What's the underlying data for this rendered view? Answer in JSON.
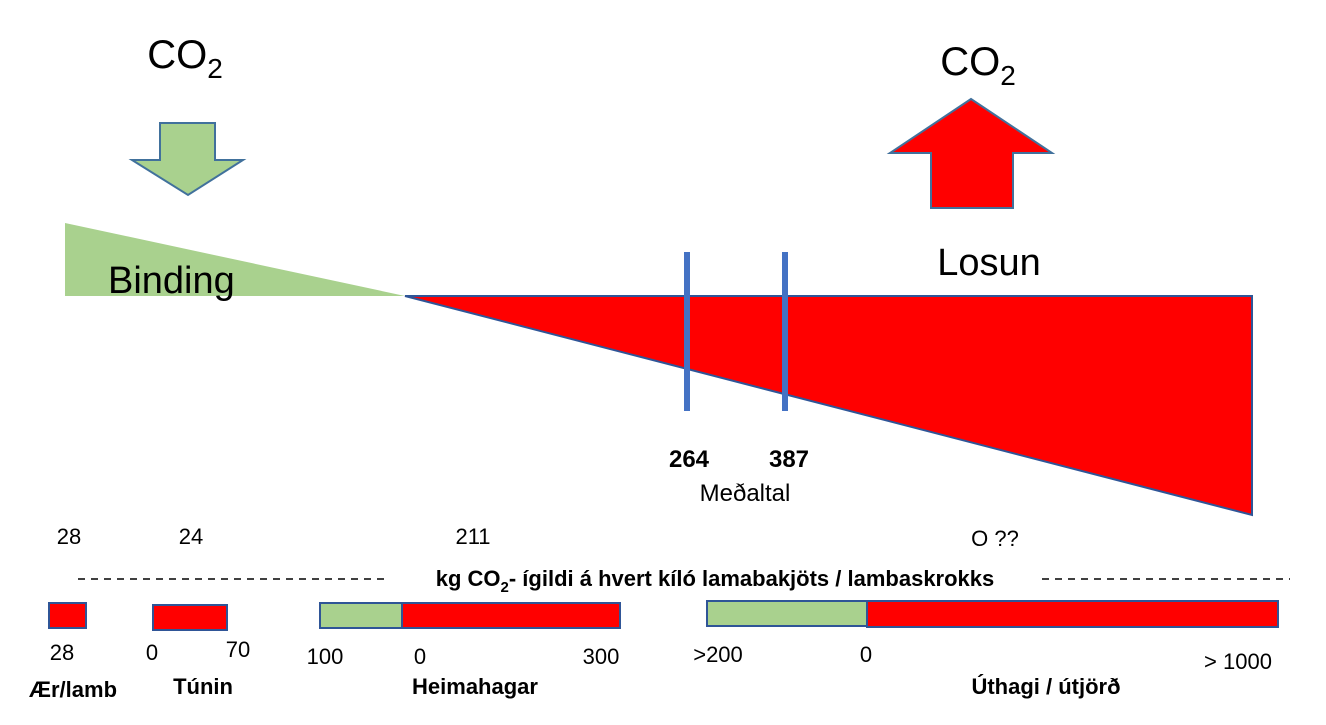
{
  "uptake": {
    "gas": "CO",
    "subscript": "2",
    "label": "Binding"
  },
  "release": {
    "gas": "CO",
    "subscript": "2",
    "label": "Losun"
  },
  "averages": {
    "values": [
      264,
      387
    ],
    "label": "Meðaltal"
  },
  "top_values": [
    28,
    24,
    211,
    "O ??"
  ],
  "axis_caption": {
    "before": "kg CO",
    "subscript": "2",
    "after": "- ígildi á hvert kíló lamabakjöts / lambaskrokks"
  },
  "categories": [
    {
      "name": "Ær/lamb",
      "labels": [
        28
      ]
    },
    {
      "name": "Túnin",
      "labels": [
        0,
        70
      ]
    },
    {
      "name": "Heimahagar",
      "labels": [
        100,
        0,
        300
      ]
    },
    {
      "name": "Úthagi / útjörð",
      "labels": [
        ">200",
        0,
        "> 1000"
      ]
    }
  ]
}
